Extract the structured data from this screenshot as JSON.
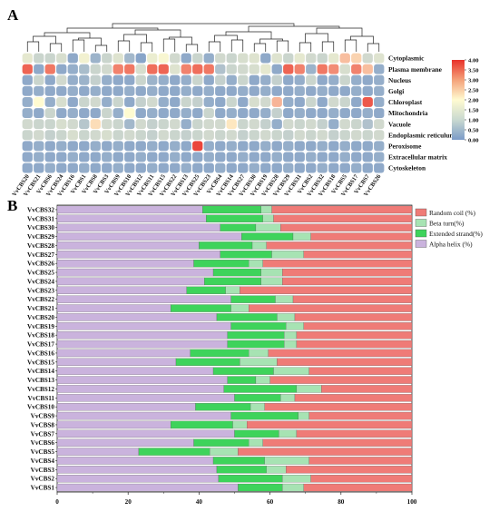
{
  "panels": {
    "a": "A",
    "b": "B"
  },
  "colors": {
    "heat_low": "#7b9bc8",
    "heat_mid": "#fffbd1",
    "heat_high": "#e8312a",
    "random_coil": "#ef7b77",
    "beta_turn": "#a7e3b3",
    "extended_strand": "#3ed35b",
    "alpha_helix": "#cab3dd"
  },
  "chart_data": [
    {
      "type": "heatmap",
      "rows": [
        "Cytoplasmic",
        "Plasma membrane",
        "Nucleus",
        "Golgi",
        "Chloroplast",
        "Mitochondria",
        "Vacuole",
        "Endoplasmic reticulum",
        "Peroxisome",
        "Extracellular matrix",
        "Cytoskeleton"
      ],
      "columns": [
        "VvCBS20",
        "VvCBS21",
        "VvCBS6",
        "VvCBS24",
        "VvCBS16",
        "VvCBS1",
        "VvCBS8",
        "VvCBS3",
        "VvCBS9",
        "VvCBS10",
        "VvCBS12",
        "VvCBS11",
        "VvCBS15",
        "VvCBS22",
        "VvCBS13",
        "VvCBS25",
        "VvCBS23",
        "VvCBS4",
        "VvCBS14",
        "VvCBS27",
        "VvCBS30",
        "VvCBS19",
        "VvCBS28",
        "VvCBS29",
        "VvCBS31",
        "VvCBS2",
        "VvCBS32",
        "VvCBS18",
        "VvCBS5",
        "VvCBS17",
        "VvCBS7",
        "VvCBS26"
      ],
      "values": [
        [
          1.6,
          1.2,
          1.2,
          1.4,
          0.3,
          1.8,
          0.5,
          1.2,
          1.5,
          0.6,
          0.2,
          1.7,
          1.9,
          1.3,
          0.3,
          1.2,
          0.4,
          1.3,
          1.2,
          1.4,
          1.5,
          0.3,
          1.5,
          1.2,
          1.6,
          1.3,
          1.2,
          1.6,
          2.6,
          2.4,
          1.3,
          1.5
        ],
        [
          3.5,
          0.3,
          3.3,
          0.3,
          0.4,
          0.7,
          1.2,
          1.3,
          3.2,
          3.3,
          1.4,
          3.4,
          3.5,
          1.5,
          3.2,
          3.4,
          3.3,
          0.8,
          1.2,
          1.3,
          1.4,
          1.6,
          0.3,
          3.5,
          3.2,
          0.5,
          3.3,
          3.1,
          1.4,
          3.2,
          2.6,
          0.4
        ],
        [
          0.3,
          1.2,
          0.3,
          1.3,
          0.4,
          0.5,
          1.1,
          0.4,
          0.3,
          0.3,
          1.2,
          0.5,
          0.4,
          0.3,
          0.4,
          1.2,
          0.3,
          1.1,
          0.4,
          1.2,
          0.3,
          0.4,
          1.1,
          0.3,
          0.4,
          1.2,
          0.3,
          0.4,
          1.2,
          0.4,
          0.3,
          0.4
        ],
        [
          0.3,
          0.4,
          0.3,
          0.3,
          0.4,
          0.3,
          0.4,
          0.3,
          0.3,
          0.4,
          0.3,
          0.4,
          0.3,
          0.3,
          0.4,
          0.3,
          0.4,
          0.3,
          0.3,
          0.4,
          0.3,
          0.4,
          0.3,
          0.3,
          0.4,
          0.3,
          0.4,
          0.3,
          0.3,
          0.4,
          0.3,
          0.4
        ],
        [
          0.4,
          2.0,
          0.4,
          1.4,
          0.3,
          1.2,
          1.3,
          0.4,
          1.2,
          0.3,
          1.1,
          1.3,
          0.4,
          0.3,
          1.2,
          1.1,
          0.4,
          0.3,
          1.2,
          0.3,
          1.4,
          1.3,
          2.7,
          0.4,
          0.3,
          1.2,
          0.3,
          1.3,
          1.2,
          0.3,
          3.6,
          0.4
        ],
        [
          0.4,
          0.3,
          1.2,
          0.3,
          0.4,
          0.3,
          0.3,
          1.2,
          0.4,
          2.0,
          0.3,
          0.4,
          0.3,
          0.3,
          0.4,
          0.3,
          1.2,
          0.3,
          0.4,
          0.3,
          0.3,
          0.4,
          1.1,
          0.3,
          0.4,
          0.3,
          0.3,
          0.4,
          0.3,
          0.3,
          0.4,
          0.3
        ],
        [
          1.3,
          1.2,
          1.2,
          1.4,
          1.3,
          0.9,
          2.3,
          1.3,
          1.2,
          0.6,
          1.3,
          1.1,
          1.2,
          1.3,
          0.4,
          1.2,
          1.3,
          1.3,
          2.2,
          1.2,
          1.3,
          1.1,
          0.4,
          1.3,
          1.2,
          1.3,
          1.1,
          0.4,
          1.3,
          1.2,
          0.8,
          1.3
        ],
        [
          1.2,
          1.3,
          1.1,
          1.2,
          1.4,
          1.2,
          1.3,
          1.4,
          1.2,
          1.3,
          1.2,
          1.1,
          1.3,
          1.2,
          1.1,
          1.2,
          1.3,
          1.2,
          1.3,
          1.1,
          1.2,
          1.3,
          1.2,
          1.1,
          1.3,
          1.2,
          1.3,
          1.1,
          1.2,
          1.3,
          1.2,
          1.3
        ],
        [
          0.3,
          0.4,
          0.3,
          0.4,
          0.3,
          0.3,
          0.4,
          0.3,
          0.4,
          0.3,
          0.3,
          0.4,
          0.3,
          0.4,
          0.3,
          3.8,
          0.4,
          0.3,
          0.4,
          0.3,
          0.3,
          0.4,
          0.3,
          0.4,
          0.3,
          0.3,
          0.4,
          0.3,
          0.4,
          0.3,
          0.3,
          0.4
        ],
        [
          0.3,
          0.4,
          0.3,
          0.3,
          0.4,
          0.3,
          0.3,
          0.4,
          0.3,
          0.3,
          0.4,
          0.3,
          0.3,
          0.4,
          0.3,
          0.3,
          0.4,
          0.3,
          0.3,
          0.4,
          0.3,
          0.3,
          0.4,
          0.3,
          0.3,
          0.4,
          0.3,
          0.3,
          0.4,
          0.3,
          0.3,
          0.4
        ],
        [
          0.3,
          0.3,
          0.4,
          0.3,
          0.3,
          0.4,
          0.3,
          0.3,
          0.4,
          0.3,
          0.3,
          0.4,
          0.3,
          0.3,
          0.4,
          0.3,
          0.3,
          0.4,
          0.3,
          0.3,
          0.4,
          0.3,
          0.3,
          0.4,
          0.3,
          0.3,
          0.4,
          0.3,
          0.3,
          0.4,
          0.3,
          0.3
        ]
      ],
      "color_scale": {
        "min": 0,
        "max": 4,
        "ticks": [
          "4.00",
          "3.50",
          "3.00",
          "2.50",
          "2.00",
          "1.50",
          "1.00",
          "0.50",
          "0.00"
        ]
      }
    },
    {
      "type": "bar",
      "orientation": "horizontal",
      "stacked": true,
      "categories": [
        "VvCBS32",
        "VvCBS31",
        "VvCBS30",
        "VvCBS29",
        "VvCBS28",
        "VvCBS27",
        "VvCBS26",
        "VvCBS25",
        "VvCBS24",
        "VvCBS23",
        "VvCBS22",
        "VvCBS21",
        "VvCBS20",
        "VvCBS19",
        "VvCBS18",
        "VvCBS17",
        "VvCBS16",
        "VvCBS15",
        "VvCBS14",
        "VvCBS13",
        "VvCBS12",
        "VvCBS11",
        "VvCBS10",
        "VvCBS9",
        "VvCBS8",
        "VvCBS7",
        "VvCBS6",
        "VvCBS5",
        "VvCBS4",
        "VvCBS3",
        "VvCBS2",
        "VvCBS1"
      ],
      "series": [
        {
          "name": "Alpha helix (%)",
          "values": [
            41,
            42,
            46,
            52,
            40,
            46,
            38.5,
            44,
            41.5,
            36.5,
            49,
            32,
            45,
            49,
            48,
            48,
            37.5,
            33.5,
            44,
            48,
            47,
            50,
            39,
            49,
            32,
            50,
            38.5,
            23,
            44,
            45,
            45.5,
            51
          ]
        },
        {
          "name": "Extended strand(%)",
          "values": [
            16.5,
            16,
            10,
            14.5,
            15,
            14.5,
            15.5,
            13.5,
            16,
            11,
            12.5,
            17,
            17,
            15.5,
            16,
            16,
            16.5,
            18,
            17,
            8,
            20.5,
            13,
            15.5,
            19,
            17.5,
            12.5,
            15.5,
            20,
            14.5,
            14,
            18,
            12.5
          ]
        },
        {
          "name": "Beta turn(%)",
          "values": [
            3,
            3,
            7,
            5,
            4,
            9,
            4,
            6,
            6,
            4,
            5,
            5,
            5,
            5,
            3.5,
            3.5,
            5.5,
            10.5,
            10,
            4,
            7,
            4,
            4,
            3,
            4,
            5,
            4,
            8,
            12.5,
            5.5,
            8,
            6
          ]
        },
        {
          "name": "Random coil (%)",
          "values": [
            39.5,
            39,
            37,
            28.5,
            41,
            30.5,
            42,
            36.5,
            36.5,
            48.5,
            33.5,
            46,
            33,
            30.5,
            32.5,
            32.5,
            40.5,
            38,
            29,
            40,
            25.5,
            33,
            41.5,
            29,
            46.5,
            32.5,
            42,
            49,
            29,
            35.5,
            28.5,
            30.5
          ]
        }
      ],
      "xticks": [
        "0",
        "20",
        "40",
        "60",
        "80",
        "100"
      ],
      "xlim": [
        0,
        100
      ]
    }
  ]
}
